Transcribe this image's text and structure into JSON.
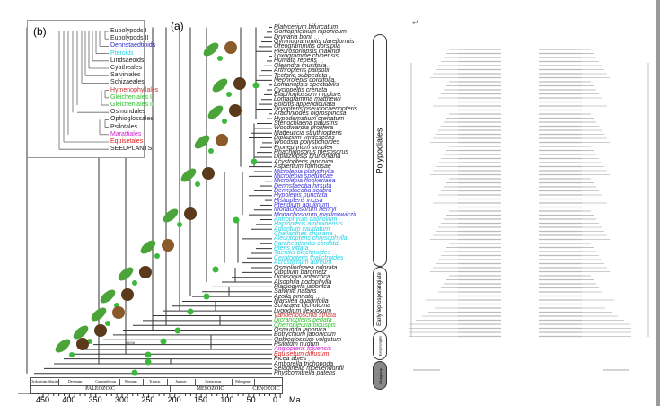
{
  "panel_a_label": "(a)",
  "panel_b_label": "(b)",
  "inset_taxa": [
    {
      "name": "Eupolypods I",
      "color": "#222222"
    },
    {
      "name": "Eupolypods II",
      "color": "#222222"
    },
    {
      "name": "Dennstaedtioids",
      "color": "#2b2bd0"
    },
    {
      "name": "Pteroids",
      "color": "#22d5e8"
    },
    {
      "name": "Lindsaeoids",
      "color": "#222222"
    },
    {
      "name": "Cyatheales",
      "color": "#222222"
    },
    {
      "name": "Salviniales",
      "color": "#222222"
    },
    {
      "name": "Schizaeales",
      "color": "#222222"
    },
    {
      "name": "Hymenophyllales",
      "color": "#c83232"
    },
    {
      "name": "Gleicheniales I",
      "color": "#2ec02e"
    },
    {
      "name": "Gleicheniales II",
      "color": "#2ec02e"
    },
    {
      "name": "Osmundales",
      "color": "#222222"
    },
    {
      "name": "Ophioglossales",
      "color": "#222222"
    },
    {
      "name": "Psilotales",
      "color": "#222222"
    },
    {
      "name": "Marattiales",
      "color": "#d020d0"
    },
    {
      "name": "Equisetales",
      "color": "#e02020"
    },
    {
      "name": "SEEDPLANTS",
      "color": "#222222"
    }
  ],
  "taxa": [
    {
      "name": "Platycerium bifurcatum",
      "color": "#222222"
    },
    {
      "name": "Goniophlebium niponicum",
      "color": "#222222"
    },
    {
      "name": "Drynaria bonii",
      "color": "#222222"
    },
    {
      "name": "Gymnogrammitis dareiformis",
      "color": "#222222"
    },
    {
      "name": "Oreogrammitis dorsipila",
      "color": "#222222"
    },
    {
      "name": "Pleurosoriopsis makinoi",
      "color": "#222222"
    },
    {
      "name": "Loxogramme chinensis",
      "color": "#222222"
    },
    {
      "name": "Humata repens",
      "color": "#222222"
    },
    {
      "name": "Oleandra musifolia",
      "color": "#222222"
    },
    {
      "name": "Arthropteris palisotii",
      "color": "#222222"
    },
    {
      "name": "Tectaria subpedata",
      "color": "#222222"
    },
    {
      "name": "Nephrolepis cordifolia",
      "color": "#222222"
    },
    {
      "name": "Lomariopsis spectabilis",
      "color": "#222222"
    },
    {
      "name": "Cyclopeltis crenata",
      "color": "#222222"
    },
    {
      "name": "Elaphoglossum mcclure",
      "color": "#222222"
    },
    {
      "name": "Lomagramma matthewii",
      "color": "#222222"
    },
    {
      "name": "Bolbitis appendiculata",
      "color": "#222222"
    },
    {
      "name": "Dryopteris pseudocaenopteris",
      "color": "#222222"
    },
    {
      "name": "Arachniodes nigrospinosa",
      "color": "#222222"
    },
    {
      "name": "Hypodematium crenatum",
      "color": "#222222"
    },
    {
      "name": "Stenochlaena palustris",
      "color": "#222222"
    },
    {
      "name": "Woodwardia prolifera",
      "color": "#222222"
    },
    {
      "name": "Matteuccia struthiopteris",
      "color": "#222222"
    },
    {
      "name": "Diplazium viridescens",
      "color": "#222222"
    },
    {
      "name": "Woodsia polystichoides",
      "color": "#222222"
    },
    {
      "name": "Pronephrium simplex",
      "color": "#222222"
    },
    {
      "name": "Rhachidosorus mesosorus",
      "color": "#222222"
    },
    {
      "name": "Diplaziopsis brunoniana",
      "color": "#222222"
    },
    {
      "name": "Acystopteris japonica",
      "color": "#222222"
    },
    {
      "name": "Asplenium formosae",
      "color": "#222222"
    },
    {
      "name": "Microlepia platyphylla",
      "color": "#3b35d8"
    },
    {
      "name": "Microlepia speluncae",
      "color": "#3b35d8"
    },
    {
      "name": "Microlepia hookeriana",
      "color": "#3b35d8"
    },
    {
      "name": "Dennstaedtia hirsuta",
      "color": "#3b35d8"
    },
    {
      "name": "Dennstaedtia scabra",
      "color": "#3b35d8"
    },
    {
      "name": "Hypolepis punctata",
      "color": "#3b35d8"
    },
    {
      "name": "Histiopteris incisa",
      "color": "#3b35d8"
    },
    {
      "name": "Pteridium aquilinum",
      "color": "#3b35d8"
    },
    {
      "name": "Monachosorum henryi",
      "color": "#3b35d8"
    },
    {
      "name": "Monachosorum maximowiczii",
      "color": "#3b35d8"
    },
    {
      "name": "Antrophyum callifolium",
      "color": "#24d2e6"
    },
    {
      "name": "Haplopteris amboinensis",
      "color": "#24d2e6"
    },
    {
      "name": "Adiantum caudatum",
      "color": "#24d2e6"
    },
    {
      "name": "Cheilanthes chusana",
      "color": "#24d2e6"
    },
    {
      "name": "Aleuritopteris chrysophylla",
      "color": "#24d2e6"
    },
    {
      "name": "Parahemionitis cordata",
      "color": "#24d2e6"
    },
    {
      "name": "Pteris vittata",
      "color": "#24d2e6"
    },
    {
      "name": "Taenitis blechnoides",
      "color": "#24d2e6"
    },
    {
      "name": "Ceratopteris thalictroides",
      "color": "#24d2e6"
    },
    {
      "name": "Acrostichum aureum",
      "color": "#24d2e6"
    },
    {
      "name": "Osmolindsaea odorata",
      "color": "#222222"
    },
    {
      "name": "Cibotium barometz",
      "color": "#222222"
    },
    {
      "name": "Dicksonia antarctica",
      "color": "#222222"
    },
    {
      "name": "Alsophila podophylla",
      "color": "#222222"
    },
    {
      "name": "Plagiogyria japonica",
      "color": "#222222"
    },
    {
      "name": "Salvinia natans",
      "color": "#222222"
    },
    {
      "name": "Azolla pinnata",
      "color": "#222222"
    },
    {
      "name": "Marsilea quadrifolia",
      "color": "#222222"
    },
    {
      "name": "Schizaea dichotoma",
      "color": "#222222"
    },
    {
      "name": "Lygodium flexuosum",
      "color": "#222222"
    },
    {
      "name": "Vandenboschia striata",
      "color": "#c83232"
    },
    {
      "name": "Dicranopteris pedata",
      "color": "#2ec02e"
    },
    {
      "name": "Cheiropleuria bicuspis",
      "color": "#2ec02e"
    },
    {
      "name": "Osmunda japonica",
      "color": "#222222"
    },
    {
      "name": "Botrychium japonicum",
      "color": "#222222"
    },
    {
      "name": "Ophioglossum vulgatum",
      "color": "#222222"
    },
    {
      "name": "Psilotum nudum",
      "color": "#222222"
    },
    {
      "name": "Angiopteris fokiensis",
      "color": "#d020d0"
    },
    {
      "name": "Equisetum diffusum",
      "color": "#e02020"
    },
    {
      "name": "Picea abies",
      "color": "#222222"
    },
    {
      "name": "Amborella trichopoda",
      "color": "#222222"
    },
    {
      "name": "Selaginella moellendorffii",
      "color": "#222222"
    },
    {
      "name": "Physcomitrella patens",
      "color": "#222222"
    }
  ],
  "clades": [
    "Polypodiales",
    "Early leptosporangiate",
    "Eusporangiate",
    "Outgroup"
  ],
  "periods": [
    "Ordovician",
    "Silurian",
    "Devonian",
    "Carboniferous",
    "Permian",
    "Triassic",
    "Jurassic",
    "Cretaceous",
    "Paleogene"
  ],
  "eras": [
    "PALEOZOIC",
    "MESOZOIC",
    "CENOZOIC"
  ],
  "axis": {
    "ticks": [
      "450",
      "400",
      "350",
      "300",
      "250",
      "200",
      "150",
      "100",
      "50",
      "0"
    ],
    "unit": "Ma"
  },
  "support_label": "98/98",
  "right_page": {
    "return_mark": "↵"
  },
  "colors": {
    "node_green": "#3cb83c",
    "tree_line": "#333333"
  }
}
